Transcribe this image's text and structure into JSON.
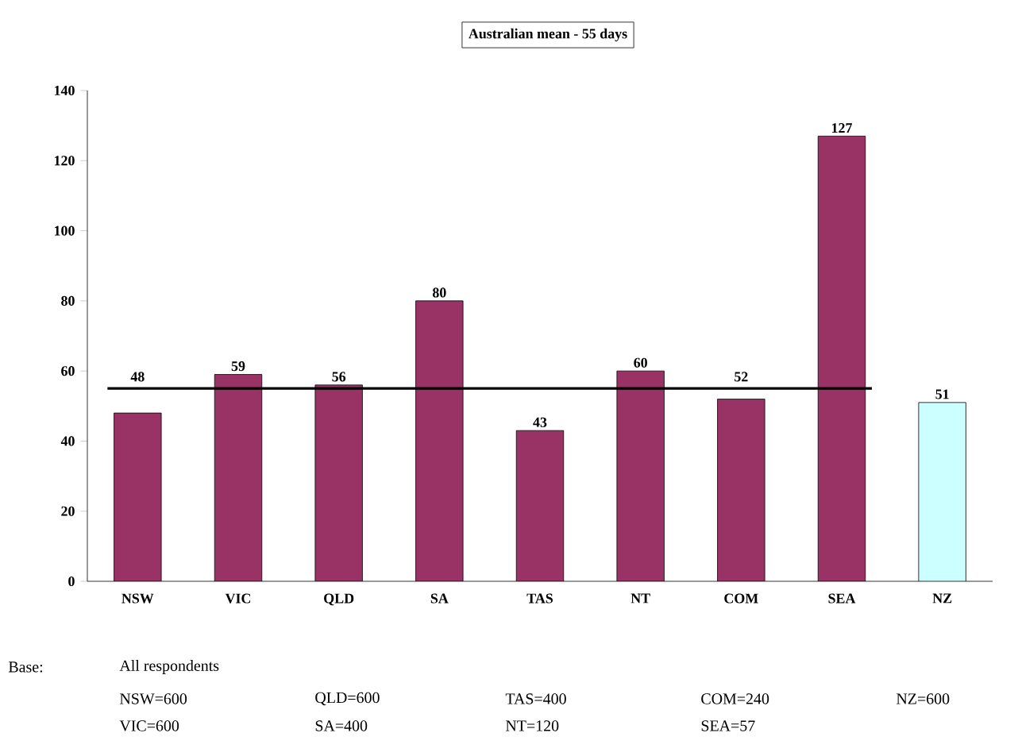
{
  "chart_data": {
    "type": "bar",
    "categories": [
      "NSW",
      "VIC",
      "QLD",
      "SA",
      "TAS",
      "NT",
      "COM",
      "SEA",
      "NZ"
    ],
    "values": [
      48,
      59,
      56,
      80,
      43,
      60,
      52,
      127,
      51
    ],
    "colors": [
      "#993366",
      "#993366",
      "#993366",
      "#993366",
      "#993366",
      "#993366",
      "#993366",
      "#993366",
      "#ccffff"
    ],
    "ylim": [
      0,
      140
    ],
    "yticks": [
      0,
      20,
      40,
      60,
      80,
      100,
      120,
      140
    ],
    "data_labels": true,
    "ref_lines": [
      {
        "axis": "y",
        "value": 55,
        "label": "Australian mean - 55 days",
        "color": "#000000"
      }
    ],
    "annotations": [
      "Base:",
      "All respondents",
      "NSW=600",
      "QLD=600",
      "TAS=400",
      "COM=240",
      "NZ=600",
      "VIC=600",
      "SA=400",
      "NT=120",
      "SEA=57"
    ]
  }
}
